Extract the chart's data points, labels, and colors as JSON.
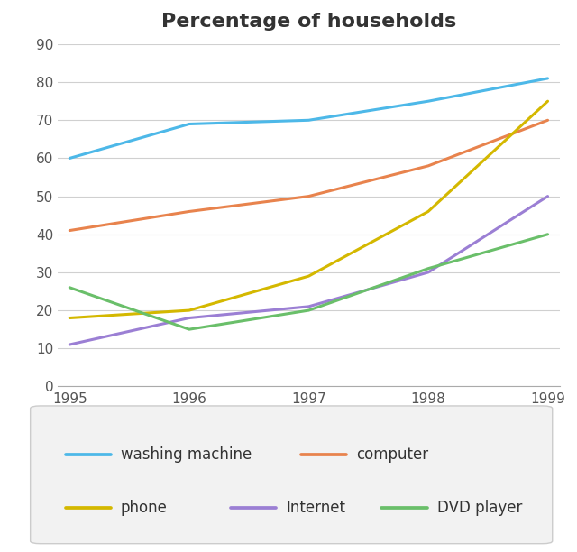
{
  "title": "Percentage of households",
  "years": [
    1995,
    1996,
    1997,
    1998,
    1999
  ],
  "series": {
    "washing machine": {
      "values": [
        60,
        69,
        70,
        75,
        81
      ],
      "color": "#4db8e8"
    },
    "computer": {
      "values": [
        41,
        46,
        50,
        58,
        70
      ],
      "color": "#e8834d"
    },
    "phone": {
      "values": [
        18,
        20,
        29,
        46,
        75
      ],
      "color": "#d4b800"
    },
    "Internet": {
      "values": [
        11,
        18,
        21,
        30,
        50
      ],
      "color": "#9b7fd4"
    },
    "DVD player": {
      "values": [
        26,
        15,
        20,
        31,
        40
      ],
      "color": "#6abf6a"
    }
  },
  "ylim": [
    0,
    90
  ],
  "yticks": [
    0,
    10,
    20,
    30,
    40,
    50,
    60,
    70,
    80,
    90
  ],
  "legend_row1": [
    "washing machine",
    "computer"
  ],
  "legend_row2": [
    "phone",
    "Internet",
    "DVD player"
  ],
  "background_color": "#ffffff",
  "grid_color": "#d0d0d0",
  "title_fontsize": 16,
  "tick_fontsize": 11,
  "legend_fontsize": 12,
  "line_width": 2.2,
  "title_color": "#333333",
  "tick_color": "#555555"
}
